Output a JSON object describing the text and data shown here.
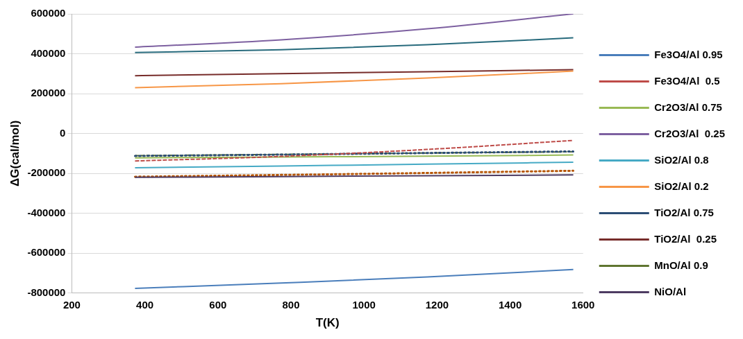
{
  "chart_data": {
    "type": "line",
    "xlabel": "T(K)",
    "ylabel": "ΔG(cal/mol)",
    "xlim": [
      200,
      1600
    ],
    "xticks": [
      200,
      400,
      600,
      800,
      1000,
      1200,
      1400,
      1600
    ],
    "ylim": [
      -800000,
      600000
    ],
    "yticks": [
      -800000,
      -600000,
      -400000,
      -200000,
      0,
      200000,
      400000,
      600000
    ],
    "grid": "y",
    "legend": "right",
    "marker": "none",
    "x": [
      373,
      773,
      1173,
      1573
    ],
    "series": [
      {
        "name": "Fe3O4/Al 0.95",
        "color": "#4a7ebb",
        "values": [
          -777000,
          -750000,
          -720000,
          -682000
        ]
      },
      {
        "name": "Fe3O4/Al  0.5",
        "color": "#be4b48",
        "line_style": "dashed",
        "values": [
          -138000,
          -115000,
          -80000,
          -35000
        ]
      },
      {
        "name": "Cr2O3/Al 0.75",
        "color": "#98b954",
        "values": [
          -122000,
          -118000,
          -114000,
          -108000
        ]
      },
      {
        "name": "Cr2O3/Al  0.25",
        "color": "#7d60a0",
        "values": [
          433000,
          470000,
          525000,
          600000
        ]
      },
      {
        "name": "SiO2/Al 0.8",
        "color": "#46aac5",
        "values": [
          -172000,
          -163000,
          -154000,
          -144000
        ]
      },
      {
        "name": "SiO2/Al 0.2",
        "color": "#f79646",
        "values": [
          230000,
          250000,
          278000,
          313000
        ]
      },
      {
        "name": "TiO2/Al 0.75",
        "color": "#2c4d75",
        "line_style": "dotted",
        "values": [
          -113000,
          -106000,
          -98000,
          -90000
        ]
      },
      {
        "name": "TiO2/Al  0.25",
        "color": "#772c2a",
        "values": [
          290000,
          300000,
          310000,
          320000
        ]
      },
      {
        "name": "MnO/Al 0.9",
        "color": "#5f7530",
        "line_style": "dashed",
        "values": [
          -111000,
          -105000,
          -98000,
          -92000
        ]
      },
      {
        "name": "NiO/Al",
        "color": "#4d3b62",
        "values": [
          -220000,
          -216000,
          -212000,
          -208000
        ]
      },
      {
        "color": "#276a7c",
        "values": [
          406000,
          420000,
          445000,
          480000
        ]
      },
      {
        "color": "#b65708",
        "line_style": "dotted",
        "values": [
          -217000,
          -208000,
          -198000,
          -187000
        ]
      }
    ]
  }
}
